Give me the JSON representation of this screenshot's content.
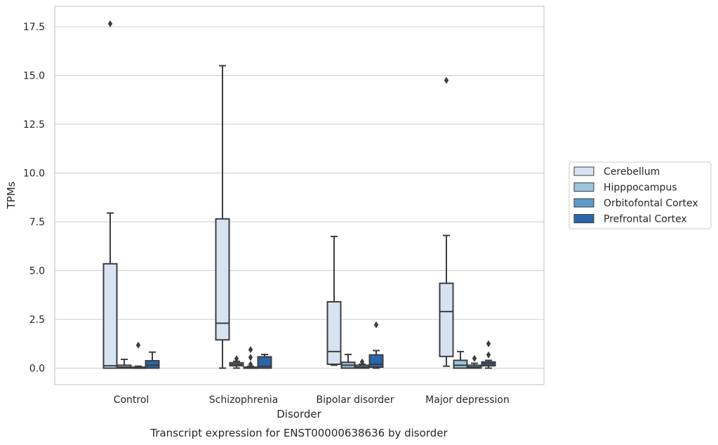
{
  "chart_data": {
    "type": "box",
    "title": "",
    "caption": "Transcript expression for ENST00000638636 by disorder",
    "xlabel": "Disorder",
    "ylabel": "TPMs",
    "ylim": [
      -0.85,
      18.5
    ],
    "yticks": [
      "0.0",
      "2.5",
      "5.0",
      "7.5",
      "10.0",
      "12.5",
      "15.0",
      "17.5"
    ],
    "grid": "horizontal",
    "legend_position": "right",
    "categories": [
      "Control",
      "Schizophrenia",
      "Bipolar disorder",
      "Major depression"
    ],
    "series": [
      {
        "name": "Cerebellum",
        "color": "#d6e4f1",
        "boxes": [
          {
            "whislo": 0.0,
            "q1": 0.0,
            "med": 0.12,
            "q3": 5.35,
            "whishi": 7.95,
            "fliers": [
              17.65
            ]
          },
          {
            "whislo": 0.0,
            "q1": 1.45,
            "med": 2.3,
            "q3": 7.65,
            "whishi": 15.5,
            "fliers": []
          },
          {
            "whislo": 0.15,
            "q1": 0.2,
            "med": 0.85,
            "q3": 3.4,
            "whishi": 6.75,
            "fliers": []
          },
          {
            "whislo": 0.1,
            "q1": 0.6,
            "med": 2.9,
            "q3": 4.35,
            "whishi": 6.8,
            "fliers": [
              14.75
            ]
          }
        ]
      },
      {
        "name": "Hipppocampus",
        "color": "#9bc4de",
        "boxes": [
          {
            "whislo": 0.0,
            "q1": 0.0,
            "med": 0.05,
            "q3": 0.15,
            "whishi": 0.45,
            "fliers": []
          },
          {
            "whislo": 0.0,
            "q1": 0.12,
            "med": 0.2,
            "q3": 0.28,
            "whishi": 0.35,
            "fliers": [
              0.48
            ]
          },
          {
            "whislo": 0.0,
            "q1": 0.0,
            "med": 0.15,
            "q3": 0.3,
            "whishi": 0.7,
            "fliers": []
          },
          {
            "whislo": 0.0,
            "q1": 0.0,
            "med": 0.15,
            "q3": 0.4,
            "whishi": 0.85,
            "fliers": []
          }
        ]
      },
      {
        "name": "Orbitofontal Cortex",
        "color": "#5a9bc9",
        "boxes": [
          {
            "whislo": 0.0,
            "q1": 0.0,
            "med": 0.02,
            "q3": 0.05,
            "whishi": 0.1,
            "fliers": [
              1.18
            ]
          },
          {
            "whislo": 0.0,
            "q1": 0.0,
            "med": 0.02,
            "q3": 0.05,
            "whishi": 0.1,
            "fliers": [
              0.95,
              0.55,
              0.2
            ]
          },
          {
            "whislo": 0.0,
            "q1": 0.0,
            "med": 0.05,
            "q3": 0.15,
            "whishi": 0.2,
            "fliers": [
              0.32
            ]
          },
          {
            "whislo": 0.0,
            "q1": 0.0,
            "med": 0.05,
            "q3": 0.15,
            "whishi": 0.25,
            "fliers": [
              0.5
            ]
          }
        ]
      },
      {
        "name": "Prefrontal Cortex",
        "color": "#2a66a9",
        "boxes": [
          {
            "whislo": 0.0,
            "q1": 0.0,
            "med": 0.15,
            "q3": 0.38,
            "whishi": 0.82,
            "fliers": []
          },
          {
            "whislo": 0.0,
            "q1": 0.0,
            "med": 0.1,
            "q3": 0.58,
            "whishi": 0.7,
            "fliers": []
          },
          {
            "whislo": 0.0,
            "q1": 0.05,
            "med": 0.2,
            "q3": 0.68,
            "whishi": 0.9,
            "fliers": [
              2.22
            ]
          },
          {
            "whislo": 0.0,
            "q1": 0.12,
            "med": 0.22,
            "q3": 0.32,
            "whishi": 0.4,
            "fliers": [
              1.25,
              0.68
            ]
          }
        ]
      }
    ]
  }
}
